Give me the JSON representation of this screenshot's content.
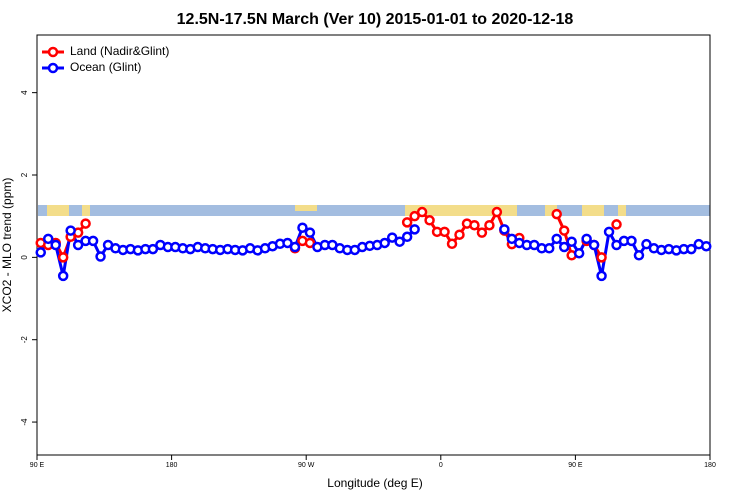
{
  "chart_data": {
    "type": "line",
    "title": "12.5N-17.5N March (Ver 10)   2015-01-01 to 2020-12-18",
    "x_label": "Longitude (deg E)",
    "y_label": "XCO2 - MLO trend (ppm)",
    "x": [
      92.5,
      97.5,
      102.5,
      107.5,
      112.5,
      117.5,
      122.5,
      127.5,
      132.5,
      137.5,
      142.5,
      147.5,
      152.5,
      157.5,
      162.5,
      167.5,
      172.5,
      177.5,
      182.5,
      187.5,
      192.5,
      197.5,
      202.5,
      207.5,
      212.5,
      217.5,
      222.5,
      227.5,
      232.5,
      237.5,
      242.5,
      247.5,
      252.5,
      257.5,
      262.5,
      267.5,
      272.5,
      277.5,
      282.5,
      287.5,
      292.5,
      297.5,
      302.5,
      307.5,
      312.5,
      317.5,
      322.5,
      327.5,
      332.5,
      337.5,
      342.5,
      347.5,
      352.5,
      357.5,
      362.5,
      367.5,
      372.5,
      377.5,
      382.5,
      387.5,
      392.5,
      397.5,
      402.5,
      407.5,
      412.5,
      417.5,
      422.5,
      427.5,
      432.5,
      437.5,
      442.5,
      447.5,
      452.5,
      457.5,
      462.5,
      467.5,
      472.5,
      477.5,
      482.5,
      487.5,
      492.5,
      497.5,
      502.5,
      507.5,
      512.5,
      517.5,
      522.5,
      527.5,
      532.5,
      537.5
    ],
    "series": [
      {
        "name": "Land (Nadir&Glint)",
        "color": "#ff0000",
        "values": [
          0.35,
          0.3,
          0.35,
          0.0,
          0.5,
          0.6,
          0.82,
          null,
          null,
          null,
          null,
          null,
          null,
          null,
          null,
          null,
          null,
          null,
          null,
          null,
          null,
          null,
          null,
          null,
          null,
          null,
          null,
          null,
          null,
          null,
          null,
          null,
          null,
          null,
          0.22,
          0.4,
          0.35,
          null,
          null,
          null,
          null,
          null,
          null,
          null,
          null,
          null,
          null,
          null,
          null,
          0.85,
          1.0,
          1.1,
          0.9,
          0.62,
          0.62,
          0.33,
          0.55,
          0.82,
          0.78,
          0.6,
          0.78,
          1.1,
          0.65,
          0.32,
          0.47,
          null,
          null,
          null,
          null,
          1.05,
          0.65,
          0.05,
          null,
          0.4,
          0.3,
          0.0,
          null,
          0.8,
          null,
          null,
          null,
          null,
          null,
          null,
          null,
          null,
          null,
          null,
          null,
          null
        ]
      },
      {
        "name": "Ocean (Glint)",
        "color": "#0000ff",
        "values": [
          0.12,
          0.45,
          0.3,
          -0.45,
          0.65,
          0.3,
          0.4,
          0.4,
          0.02,
          0.3,
          0.22,
          0.18,
          0.2,
          0.17,
          0.2,
          0.2,
          0.3,
          0.25,
          0.25,
          0.22,
          0.2,
          0.25,
          0.22,
          0.2,
          0.18,
          0.2,
          0.18,
          0.17,
          0.22,
          0.17,
          0.22,
          0.27,
          0.33,
          0.35,
          0.25,
          0.72,
          0.6,
          0.25,
          0.3,
          0.3,
          0.22,
          0.18,
          0.18,
          0.25,
          0.28,
          0.3,
          0.35,
          0.48,
          0.38,
          0.5,
          0.68,
          null,
          null,
          null,
          null,
          null,
          null,
          null,
          null,
          null,
          null,
          null,
          0.68,
          0.45,
          0.35,
          0.3,
          0.3,
          0.22,
          0.22,
          0.45,
          0.25,
          0.38,
          0.1,
          0.45,
          0.3,
          -0.45,
          0.62,
          0.3,
          0.4,
          0.4,
          0.05,
          0.32,
          0.22,
          0.18,
          0.2,
          0.17,
          0.2,
          0.2,
          0.32,
          0.27
        ]
      }
    ],
    "xlim": [
      90,
      540
    ],
    "xticks": [
      {
        "value": 90,
        "label": "90 E"
      },
      {
        "value": 180,
        "label": "180"
      },
      {
        "value": 270,
        "label": "90 W"
      },
      {
        "value": 360,
        "label": "0"
      },
      {
        "value": 450,
        "label": "90 E"
      },
      {
        "value": 540,
        "label": "180"
      }
    ],
    "ylim": [
      -4.8,
      5.4
    ],
    "yticks": [
      -4,
      -2,
      0,
      2,
      4
    ],
    "legend": "top-left"
  }
}
